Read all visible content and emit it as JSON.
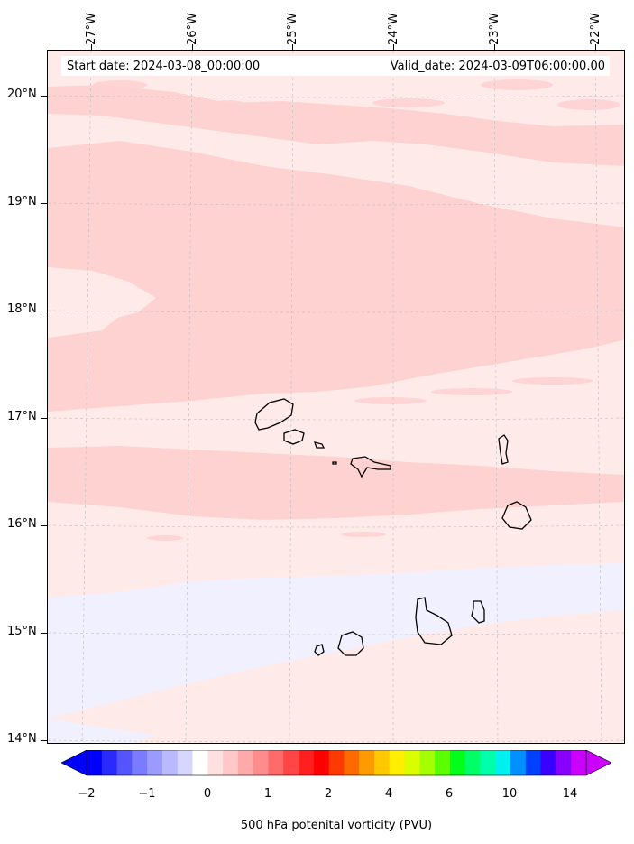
{
  "title": {
    "start_date": "Start date: 2024-03-08_00:00:00",
    "valid_date": "Valid_date: 2024-03-09T06:00:00.00"
  },
  "map": {
    "lon_labels": [
      "27°W",
      "26°W",
      "25°W",
      "24°W",
      "23°W",
      "22°W"
    ],
    "lat_labels": [
      "20°N",
      "19°N",
      "18°N",
      "17°N",
      "16°N",
      "15°N",
      "14°N"
    ],
    "field_colors": {
      "background": "#ffeaea",
      "band_dark": "#ffd2d2",
      "band_blue": "#f0f0ff"
    },
    "islands": [
      "Santo Antão",
      "São Vicente",
      "Santa Luzia",
      "Branco",
      "São Nicolau",
      "Sal",
      "Boa Vista",
      "Maio",
      "Santiago",
      "Fogo",
      "Brava"
    ]
  },
  "colorbar": {
    "label": "500 hPa potenital vorticity (PVU)",
    "tick_labels": [
      "−2",
      "−1",
      "0",
      "1",
      "2",
      "4",
      "6",
      "10",
      "14"
    ],
    "colors": [
      "#0000ff",
      "#2a2aff",
      "#5555ff",
      "#7b7bff",
      "#9a9aff",
      "#b9b9ff",
      "#d6d6ff",
      "#ffffff",
      "#ffe0e0",
      "#ffc8c8",
      "#ffaaaa",
      "#ff8c8c",
      "#ff6a6a",
      "#ff4545",
      "#ff1f1f",
      "#ff0000",
      "#ff3a00",
      "#ff6a00",
      "#ff9a00",
      "#ffc800",
      "#ffee00",
      "#d8ff00",
      "#a6ff00",
      "#5cff00",
      "#00ff1a",
      "#00ff66",
      "#00ffaa",
      "#00f0f0",
      "#0090ff",
      "#0040ff",
      "#3a00ff",
      "#8a00ff",
      "#cc00ff"
    ]
  }
}
